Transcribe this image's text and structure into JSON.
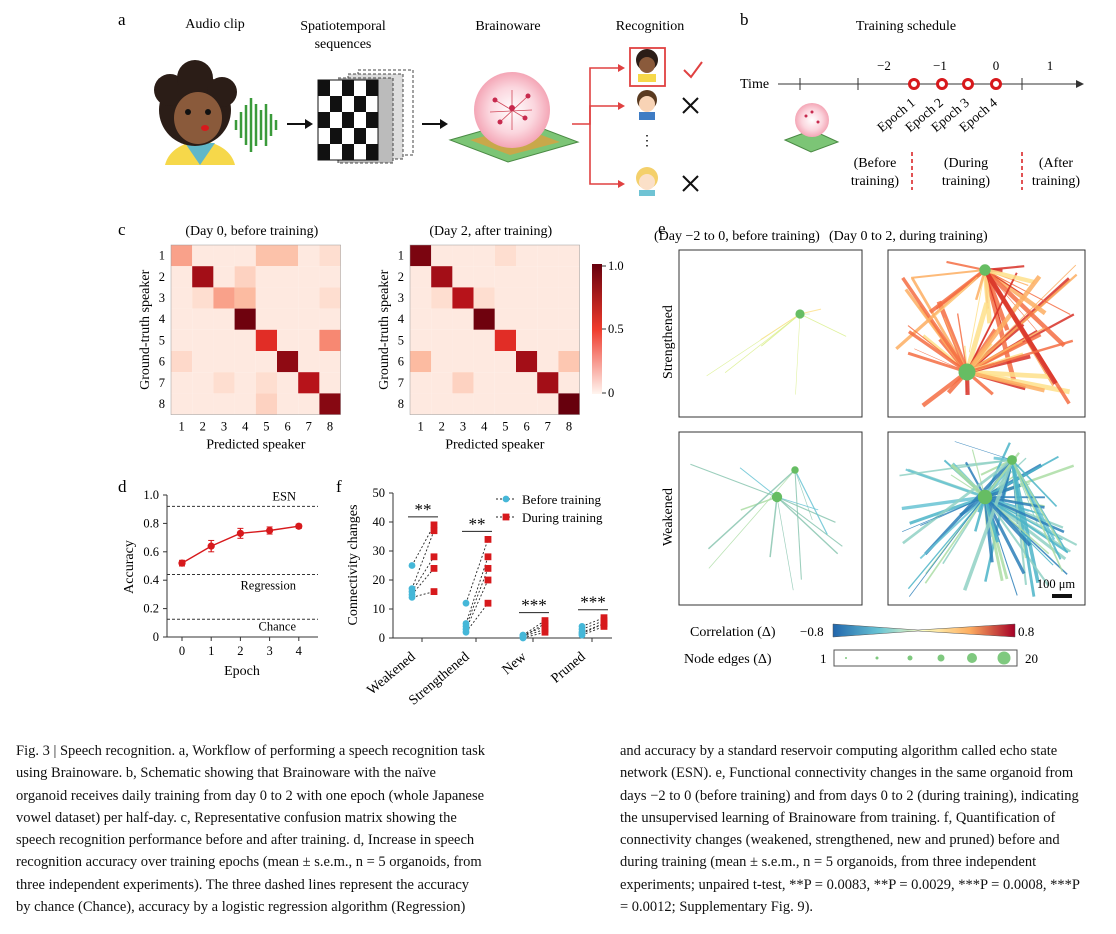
{
  "panels": {
    "a": "a",
    "b": "b",
    "c": "c",
    "d": "d",
    "e": "e",
    "f": "f"
  },
  "panel_a": {
    "audio_clip": "Audio clip",
    "spatio_line1": "Spatiotemporal",
    "spatio_line2": "sequences",
    "brainoware": "Brainoware",
    "recognition": "Recognition",
    "dots": "⋮"
  },
  "panel_b": {
    "title": "Training schedule",
    "time_label": "Time",
    "ticks": [
      "−2",
      "−1",
      "0",
      "1"
    ],
    "epochs": [
      "Epoch 1",
      "Epoch 2",
      "Epoch 3",
      "Epoch 4"
    ],
    "before": [
      "(Before",
      "training)"
    ],
    "during": [
      "(During",
      "training)"
    ],
    "after": [
      "(After",
      "training)"
    ]
  },
  "chart_data": [
    {
      "type": "heatmap",
      "title": "(Day 0, before training)",
      "xlabel": "Predicted speaker",
      "ylabel": "Ground-truth speaker",
      "ticks": [
        "1",
        "2",
        "3",
        "4",
        "5",
        "6",
        "7",
        "8"
      ],
      "values": [
        [
          0.3,
          0.05,
          0.05,
          0.05,
          0.22,
          0.22,
          0.05,
          0.1
        ],
        [
          0.05,
          0.85,
          0.05,
          0.15,
          0.05,
          0.05,
          0.05,
          0.05
        ],
        [
          0.05,
          0.1,
          0.3,
          0.25,
          0.05,
          0.05,
          0.05,
          0.1
        ],
        [
          0.05,
          0.05,
          0.05,
          0.98,
          0.05,
          0.05,
          0.05,
          0.05
        ],
        [
          0.05,
          0.05,
          0.05,
          0.05,
          0.6,
          0.05,
          0.05,
          0.35
        ],
        [
          0.12,
          0.05,
          0.05,
          0.05,
          0.05,
          0.9,
          0.05,
          0.05
        ],
        [
          0.05,
          0.05,
          0.1,
          0.05,
          0.1,
          0.05,
          0.8,
          0.05
        ],
        [
          0.05,
          0.05,
          0.05,
          0.05,
          0.15,
          0.05,
          0.05,
          0.92
        ]
      ]
    },
    {
      "type": "heatmap",
      "title": "(Day 2, after training)",
      "xlabel": "Predicted speaker",
      "ylabel": "Ground-truth speaker",
      "ticks": [
        "1",
        "2",
        "3",
        "4",
        "5",
        "6",
        "7",
        "8"
      ],
      "colorbar_ticks": [
        "1.0",
        "0.5",
        "0"
      ],
      "values": [
        [
          0.95,
          0.05,
          0.05,
          0.05,
          0.1,
          0.05,
          0.05,
          0.05
        ],
        [
          0.05,
          0.85,
          0.05,
          0.05,
          0.05,
          0.05,
          0.05,
          0.05
        ],
        [
          0.05,
          0.1,
          0.8,
          0.1,
          0.05,
          0.05,
          0.05,
          0.05
        ],
        [
          0.05,
          0.05,
          0.05,
          0.98,
          0.05,
          0.05,
          0.05,
          0.05
        ],
        [
          0.05,
          0.05,
          0.05,
          0.05,
          0.6,
          0.05,
          0.05,
          0.05
        ],
        [
          0.25,
          0.05,
          0.05,
          0.05,
          0.05,
          0.85,
          0.05,
          0.2
        ],
        [
          0.05,
          0.05,
          0.15,
          0.05,
          0.05,
          0.05,
          0.85,
          0.05
        ],
        [
          0.05,
          0.05,
          0.05,
          0.05,
          0.05,
          0.05,
          0.05,
          1.0
        ]
      ]
    },
    {
      "type": "line",
      "xlabel": "Epoch",
      "ylabel": "Accuracy",
      "x": [
        0,
        1,
        2,
        3,
        4
      ],
      "y": [
        0.52,
        0.64,
        0.73,
        0.75,
        0.78
      ],
      "err": [
        0.02,
        0.04,
        0.035,
        0.025,
        0.015
      ],
      "ylim": [
        0,
        1.0
      ],
      "yticks": [
        "0",
        "0.2",
        "0.4",
        "0.6",
        "0.8",
        "1.0"
      ],
      "xticks": [
        "0",
        "1",
        "2",
        "3",
        "4"
      ],
      "reference_lines": [
        {
          "label": "ESN",
          "value": 0.92
        },
        {
          "label": "Regression",
          "value": 0.44
        },
        {
          "label": "Chance",
          "value": 0.125
        }
      ]
    },
    {
      "type": "scatter",
      "ylabel": "Connectivity changes",
      "ylim": [
        0,
        50
      ],
      "yticks": [
        "0",
        "10",
        "20",
        "30",
        "40",
        "50"
      ],
      "categories": [
        "Weakened",
        "Strengthened",
        "New",
        "Pruned"
      ],
      "series": [
        {
          "name": "Before training",
          "values": [
            [
              14,
              15,
              16,
              17,
              25
            ],
            [
              2,
              3,
              4,
              5,
              12
            ],
            [
              0,
              0.5,
              1,
              0.5,
              1
            ],
            [
              1,
              1.5,
              2,
              3,
              4
            ]
          ]
        },
        {
          "name": "During training",
          "values": [
            [
              16,
              24,
              28,
              37,
              39
            ],
            [
              12,
              20,
              24,
              28,
              34
            ],
            [
              2,
              3,
              4,
              5,
              6
            ],
            [
              4,
              5,
              5,
              6,
              7
            ]
          ]
        }
      ],
      "significance": [
        "**",
        "**",
        "***",
        "***"
      ]
    }
  ],
  "panel_e": {
    "title_left": "(Day −2 to 0, before training)",
    "title_right": "(Day 0 to 2, during training)",
    "row1": "Strengthened",
    "row2": "Weakened",
    "scale_bar": "100 μm",
    "correlation_label": "Correlation (Δ)",
    "corr_min": "−0.8",
    "corr_max": "0.8",
    "node_label": "Node edges (Δ)",
    "node_min": "1",
    "node_max": "20"
  },
  "caption": {
    "left": "Fig. 3 | Speech recognition. a, Workflow of performing a speech recognition task using Brainoware. b, Schematic showing that Brainoware with the naïve organoid receives daily training from day 0 to 2 with one epoch (whole Japanese vowel dataset) per half-day. c, Representative confusion matrix showing the speech recognition performance before and after training. d, Increase in speech recognition accuracy over training epochs (mean ± s.e.m., n = 5 organoids, from three independent experiments). The three dashed lines represent the accuracy by chance (Chance), accuracy by a logistic regression algorithm (Regression)",
    "right": "and accuracy by a standard reservoir computing algorithm called echo state network (ESN). e, Functional connectivity changes in the same organoid from days −2 to 0 (before training) and from days 0 to 2 (during training), indicating the unsupervised learning of Brainoware from training. f, Quantification of connectivity changes (weakened, strengthened, new and pruned) before and during training (mean ± s.e.m., n = 5 organoids, from three independent experiments; unpaired t-test, **P = 0.0083, **P = 0.0029, ***P = 0.0008, ***P = 0.0012; Supplementary Fig. 9)."
  },
  "colors": {
    "accent": "#d7191c",
    "cyan": "#45b7d8",
    "dark_red": "#67000d"
  }
}
